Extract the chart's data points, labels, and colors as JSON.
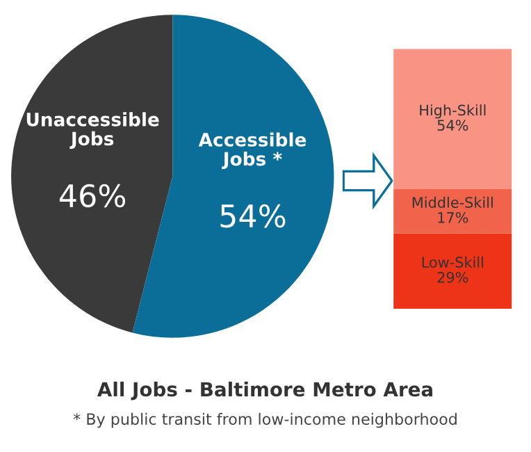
{
  "chart_data": [
    {
      "type": "pie",
      "title": "All Jobs - Baltimore Metro Area",
      "categories": [
        "Unaccessible Jobs",
        "Accessible Jobs *"
      ],
      "values": [
        46,
        54
      ],
      "colors": [
        "#3a3a3a",
        "#0b6e99"
      ],
      "value_labels": [
        "46%",
        "54%"
      ],
      "annotations": [
        "* By public transit from low-income neighborhood"
      ]
    },
    {
      "type": "bar",
      "stacked": true,
      "categories": [
        null
      ],
      "series": [
        {
          "name": "Low-Skill",
          "color": "#ee3418",
          "values": [
            29
          ],
          "value_labels": [
            "29%"
          ]
        },
        {
          "name": "Middle-Skill",
          "color": "#f2634c",
          "values": [
            17
          ],
          "value_labels": [
            "17%"
          ]
        },
        {
          "name": "High-Skill",
          "color": "#f99484",
          "values": [
            54
          ],
          "value_labels": [
            "54%"
          ]
        }
      ]
    }
  ]
}
